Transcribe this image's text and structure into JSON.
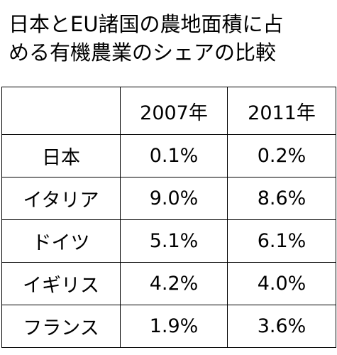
{
  "header": {
    "title": [
      "日本とEU諸国の農地面積に占",
      "める有機農業のシェアの比較"
    ]
  },
  "table": {
    "columns": [
      "",
      "2007年",
      "2011年"
    ],
    "rows": [
      [
        "日本",
        "0.1%",
        "0.2%"
      ],
      [
        "イタリア",
        "9.0%",
        "8.6%"
      ],
      [
        "ドイツ",
        "5.1%",
        "6.1%"
      ],
      [
        "イギリス",
        "4.2%",
        "4.0%"
      ],
      [
        "フランス",
        "1.9%",
        "3.6%"
      ]
    ]
  }
}
